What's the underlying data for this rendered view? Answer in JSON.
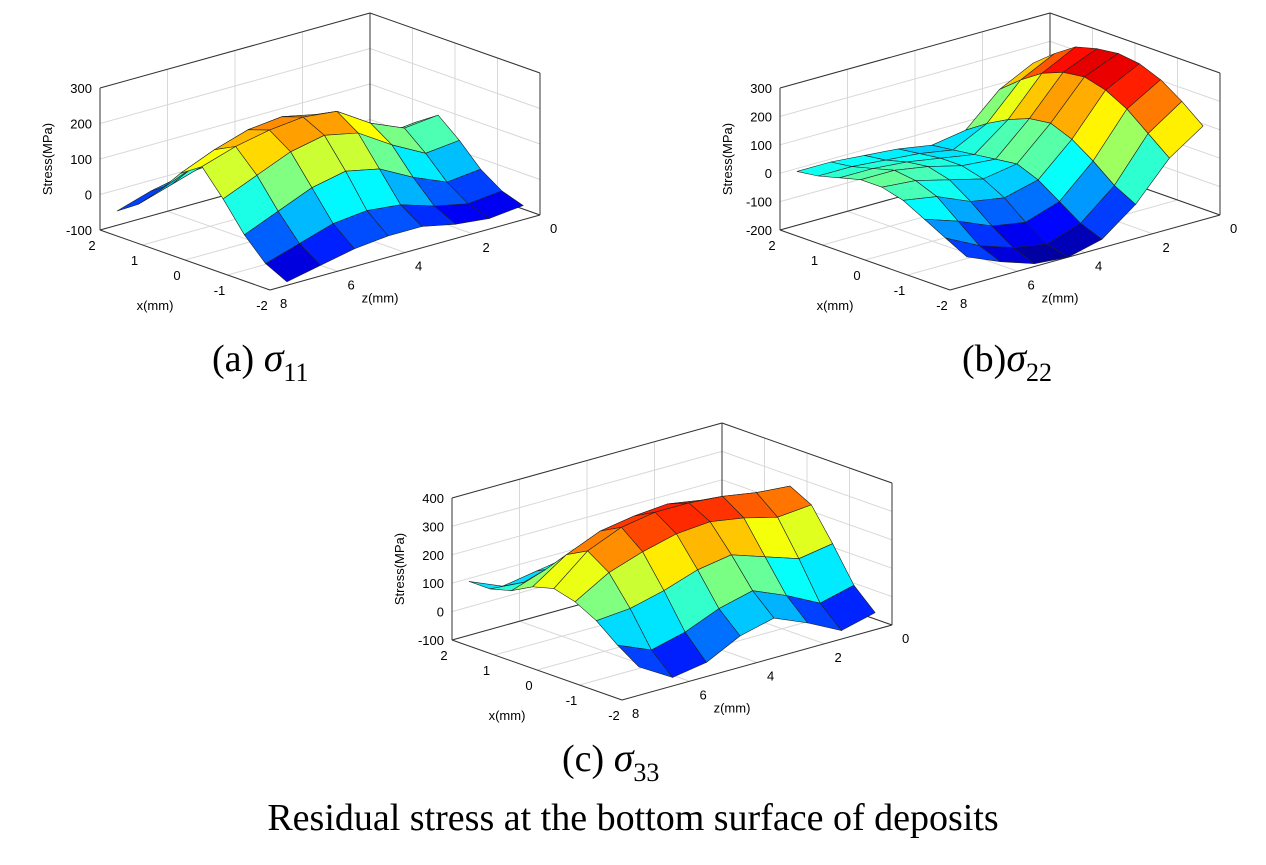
{
  "figure": {
    "caption": "Residual stress at the bottom surface of deposits",
    "symbol": "σ"
  },
  "chart_data": [
    {
      "type": "surface",
      "panel_label": "(a)",
      "subscript": "11",
      "zlabel": "Stress(MPa)",
      "xlabel": "x(mm)",
      "ylabel": "z(mm)",
      "x_ticks": [
        "2",
        "1",
        "0",
        "-1",
        "-2"
      ],
      "z_ticks": [
        "8",
        "6",
        "4",
        "2",
        "0"
      ],
      "stress_ticks": [
        "300",
        "200",
        "100",
        "0",
        "-100"
      ],
      "xlim": [
        -2,
        2
      ],
      "zlim": [
        0,
        8
      ],
      "stress_lim": [
        -100,
        300
      ],
      "grid": true,
      "colormap": "jet",
      "surface": {
        "z_values": [
          0.5,
          1.5,
          2.5,
          3.5,
          4.5,
          5.5,
          6.5,
          7.5
        ],
        "x_values": [
          -2,
          -1.5,
          -1,
          -0.5,
          0,
          0.5,
          1,
          1.5,
          2
        ],
        "stress": [
          [
            -60,
            -40,
            0,
            60,
            110,
            70,
            20,
            -20,
            -50
          ],
          [
            -70,
            -50,
            -10,
            50,
            100,
            60,
            10,
            -30,
            -60
          ],
          [
            -60,
            -30,
            30,
            100,
            140,
            110,
            60,
            0,
            -40
          ],
          [
            -40,
            0,
            80,
            160,
            200,
            170,
            110,
            40,
            -10
          ],
          [
            -40,
            10,
            100,
            180,
            210,
            190,
            130,
            60,
            0
          ],
          [
            -50,
            0,
            80,
            160,
            200,
            180,
            120,
            40,
            -10
          ],
          [
            -70,
            -30,
            40,
            120,
            180,
            150,
            80,
            10,
            -30
          ],
          [
            -90,
            -60,
            0,
            80,
            150,
            110,
            40,
            -20,
            -60
          ]
        ]
      }
    },
    {
      "type": "surface",
      "panel_label": "(b)",
      "subscript": "22",
      "zlabel": "Stress(MPa)",
      "xlabel": "x(mm)",
      "ylabel": "z(mm)",
      "x_ticks": [
        "2",
        "1",
        "0",
        "-1",
        "-2"
      ],
      "z_ticks": [
        "8",
        "6",
        "4",
        "2",
        "0"
      ],
      "stress_ticks": [
        "300",
        "200",
        "100",
        "0",
        "-100",
        "-200"
      ],
      "xlim": [
        -2,
        2
      ],
      "zlim": [
        0,
        8
      ],
      "stress_lim": [
        -200,
        300
      ],
      "grid": true,
      "colormap": "jet",
      "surface": {
        "z_values": [
          0.5,
          1.5,
          2.5,
          3.5,
          4.5,
          5.5,
          6.5,
          7.5
        ],
        "x_values": [
          -2,
          -1.5,
          -1,
          -0.5,
          0,
          0.5,
          1,
          1.5,
          2
        ],
        "stress": [
          [
            130,
            190,
            240,
            270,
            280,
            270,
            250,
            200,
            140
          ],
          [
            50,
            110,
            170,
            210,
            230,
            220,
            190,
            140,
            80
          ],
          [
            -80,
            -40,
            20,
            70,
            100,
            90,
            60,
            20,
            -30
          ],
          [
            -170,
            -140,
            -90,
            -40,
            -10,
            -20,
            -30,
            -40,
            -50
          ],
          [
            -200,
            -180,
            -130,
            -70,
            -30,
            -10,
            -10,
            -20,
            -30
          ],
          [
            -190,
            -160,
            -110,
            -50,
            0,
            20,
            10,
            -10,
            -20
          ],
          [
            -150,
            -120,
            -60,
            0,
            30,
            40,
            20,
            0,
            -10
          ],
          [
            -100,
            -60,
            -20,
            20,
            40,
            40,
            20,
            0,
            -10
          ]
        ]
      }
    },
    {
      "type": "surface",
      "panel_label": "(c)",
      "subscript": "33",
      "zlabel": "Stress(MPa)",
      "xlabel": "x(mm)",
      "ylabel": "z(mm)",
      "x_ticks": [
        "2",
        "1",
        "0",
        "-1",
        "-2"
      ],
      "z_ticks": [
        "8",
        "6",
        "4",
        "2",
        "0"
      ],
      "stress_ticks": [
        "400",
        "300",
        "200",
        "100",
        "0",
        "-100"
      ],
      "xlim": [
        -2,
        2
      ],
      "zlim": [
        0,
        8
      ],
      "stress_lim": [
        -100,
        400
      ],
      "grid": true,
      "colormap": "jet",
      "surface": {
        "z_values": [
          0.5,
          1.5,
          2.5,
          3.5,
          4.5,
          5.5,
          6.5,
          7.5
        ],
        "x_values": [
          -2,
          -1.5,
          -1,
          -0.5,
          0,
          0.5,
          1,
          1.5,
          2
        ],
        "stress": [
          [
            -40,
            30,
            150,
            260,
            300,
            250,
            170,
            110,
            100
          ],
          [
            -70,
            0,
            130,
            250,
            310,
            260,
            180,
            110,
            90
          ],
          [
            -10,
            60,
            170,
            280,
            330,
            290,
            200,
            120,
            90
          ],
          [
            40,
            110,
            210,
            300,
            340,
            310,
            220,
            130,
            90
          ],
          [
            10,
            80,
            190,
            290,
            340,
            300,
            210,
            120,
            80
          ],
          [
            -50,
            30,
            150,
            260,
            320,
            280,
            190,
            100,
            60
          ],
          [
            -70,
            0,
            120,
            220,
            270,
            230,
            150,
            80,
            40
          ],
          [
            0,
            50,
            110,
            150,
            170,
            150,
            110,
            90,
            90
          ]
        ]
      }
    }
  ]
}
